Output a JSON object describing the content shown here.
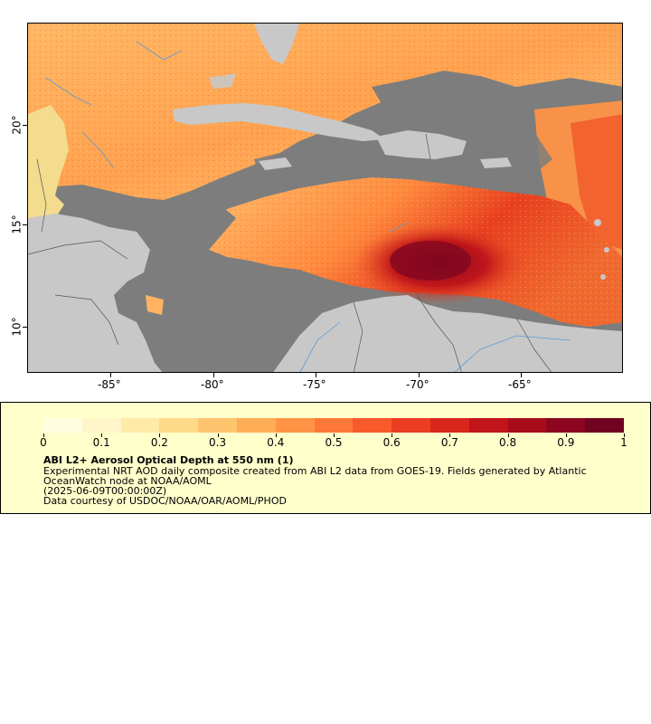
{
  "map": {
    "lon_ticks": [
      "-85°",
      "-80°",
      "-75°",
      "-70°",
      "-65°"
    ],
    "lat_ticks": [
      "20°",
      "15°",
      "10°"
    ],
    "colors": {
      "ocean_missing": "#7d7d7d",
      "land": "#c8c8c8",
      "rivers": "#5b9bd5",
      "borders": "#555555"
    }
  },
  "colorbar": {
    "ticks": [
      "0",
      "0.1",
      "0.2",
      "0.3",
      "0.4",
      "0.5",
      "0.6",
      "0.7",
      "0.8",
      "0.9",
      "1"
    ],
    "colors": [
      "#ffffe0",
      "#fff5c8",
      "#ffeaa8",
      "#ffd98a",
      "#ffc46e",
      "#ffad57",
      "#ff9446",
      "#ff7838",
      "#f95a2c",
      "#ea3d22",
      "#d8261c",
      "#c2151a",
      "#a80c1c",
      "#8c0620",
      "#700222"
    ]
  },
  "legend": {
    "title": "ABI L2+ Aerosol Optical Depth at 550 nm (1)",
    "line1": "Experimental NRT AOD daily composite created from ABI L2 data from GOES-19. Fields generated by Atlantic",
    "line2": "OceanWatch node at NOAA/AOML",
    "line3": "(2025-06-09T00:00:00Z)",
    "line4": "Data courtesy of USDOC/NOAA/OAR/AOML/PHOD"
  }
}
